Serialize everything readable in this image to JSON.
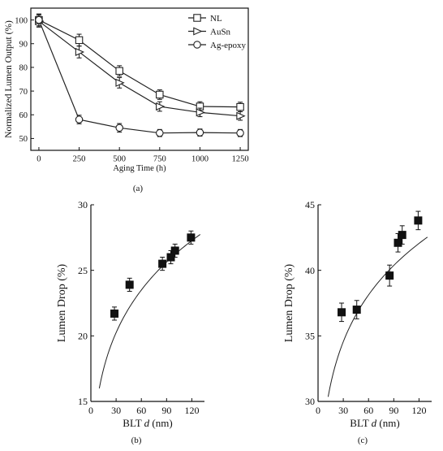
{
  "chart_data": [
    {
      "type": "line",
      "caption": "(a)",
      "xlabel": "Aging Time (h)",
      "ylabel": "Normalized Lumen Output (%)",
      "xlim": [
        -50,
        1300
      ],
      "ylim": [
        45,
        105
      ],
      "xticks": [
        0,
        250,
        500,
        750,
        1000,
        1250
      ],
      "yticks": [
        50,
        60,
        70,
        80,
        90,
        100
      ],
      "legend_position": "top-right",
      "grid": false,
      "series": [
        {
          "name": "NL",
          "marker": "square",
          "x": [
            0,
            250,
            500,
            750,
            1000,
            1250
          ],
          "y": [
            100,
            91.5,
            78.5,
            68.5,
            63.5,
            63.3
          ],
          "err": [
            2.5,
            2.5,
            2.2,
            2,
            2,
            2
          ]
        },
        {
          "name": "AuSn",
          "marker": "triangle-right",
          "x": [
            0,
            250,
            500,
            750,
            1000,
            1250
          ],
          "y": [
            99.5,
            86.5,
            73.5,
            63.5,
            61,
            59.5
          ],
          "err": [
            2.5,
            2.5,
            2.2,
            2,
            1.8,
            1.8
          ]
        },
        {
          "name": "Ag-epoxy",
          "marker": "circle",
          "x": [
            0,
            250,
            500,
            750,
            1000,
            1250
          ],
          "y": [
            100,
            58,
            54.5,
            52.3,
            52.5,
            52.3
          ],
          "err": [
            2.5,
            1.8,
            1.8,
            1.5,
            1.5,
            1.5
          ]
        }
      ]
    },
    {
      "type": "scatter",
      "caption": "(b)",
      "xlabel_prefix": "BLT ",
      "xlabel_var": "d",
      "xlabel_suffix": " (nm)",
      "ylabel": "Lumen Drop (%)",
      "xlim": [
        0,
        135
      ],
      "ylim": [
        15,
        30
      ],
      "xticks": [
        0,
        30,
        60,
        90,
        120
      ],
      "yticks": [
        15,
        20,
        25,
        30
      ],
      "grid": false,
      "points": {
        "x": [
          28,
          46,
          85,
          95,
          100,
          119
        ],
        "y": [
          21.7,
          23.9,
          25.5,
          26.0,
          26.5,
          27.5
        ],
        "err": [
          0.5,
          0.5,
          0.5,
          0.5,
          0.5,
          0.5
        ]
      },
      "fit": {
        "x_start": 10,
        "x_end": 130,
        "a": 9.76,
        "b": 0.2146
      }
    },
    {
      "type": "scatter",
      "caption": "(c)",
      "xlabel_prefix": "BLT ",
      "xlabel_var": "d",
      "xlabel_suffix": " (nm)",
      "ylabel": "Lumen Drop (%)",
      "xlim": [
        0,
        135
      ],
      "ylim": [
        30,
        45
      ],
      "xticks": [
        0,
        30,
        60,
        90,
        120
      ],
      "yticks": [
        30,
        35,
        40,
        45
      ],
      "grid": false,
      "points": {
        "x": [
          28,
          46,
          85,
          95,
          100,
          119
        ],
        "y": [
          36.8,
          37.0,
          39.6,
          42.1,
          42.7,
          43.8
        ],
        "err": [
          0.7,
          0.7,
          0.8,
          0.7,
          0.7,
          0.7
        ]
      },
      "fit": {
        "x_start": 12,
        "x_end": 130,
        "a": 21.35,
        "b": 0.1416
      }
    }
  ]
}
